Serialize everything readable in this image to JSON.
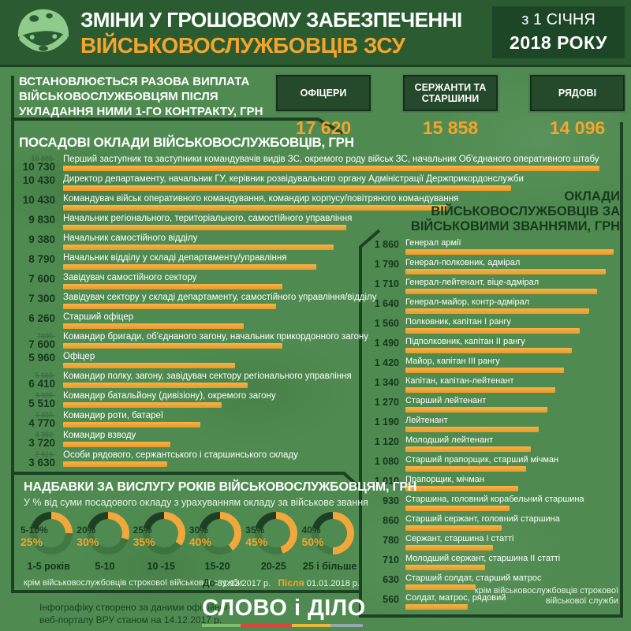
{
  "colors": {
    "background": "#4F8B50",
    "header": "#2B5C31",
    "panel_dark": "#1C4123",
    "box": "#24492B",
    "accent_orange": "#F2A73B",
    "value_dark": "#16371D"
  },
  "header": {
    "title_line1": "ЗМІНИ У ГРОШОВОМУ ЗАБЕЗПЕЧЕННІ",
    "title_line2": "ВІЙСЬКОВОСЛУЖБОВЦІВ ЗСУ",
    "date_line1": "з 1 СІЧНЯ",
    "date_line2": "2018 РОКУ"
  },
  "contract": {
    "lines": [
      "ВСТАНОВЛЮЄТЬСЯ РАЗОВА ВИПЛАТА",
      "ВІЙСЬКОВОСЛУЖБОВЦЯМ ПІСЛЯ",
      "УКЛАДАННЯ НИМИ 1-ГО КОНТРАКТУ, ГРН"
    ],
    "categories": [
      {
        "label": "ОФІЦЕРИ",
        "value": "17 620"
      },
      {
        "label": "СЕРЖАНТИ ТА СТАРШИНИ",
        "value": "15 858"
      },
      {
        "label": "РЯДОВІ",
        "value": "14 096"
      }
    ]
  },
  "chart_data": [
    {
      "type": "bar",
      "orientation": "horizontal",
      "title": "ПОСАДОВІ ОКЛАДИ ВІЙСЬКОВОСЛУЖБОВЦІВ, ГРН",
      "unit": "грн",
      "max": 10730,
      "bar_color": "#F2A73B",
      "rows": [
        {
          "label": "Перший заступник та заступники командувачів видів ЗС, окремого роду військ ЗС, начальник Об'єднаного оперативного штабу",
          "value": 10730,
          "value_label": "10 730",
          "old_label": "10 580-"
        },
        {
          "label": "Директор департаменту, начальник ГУ, керівник розвідувального органу Адміністрації Держприкордонслужби",
          "value": 10430,
          "value_label": "10 430"
        },
        {
          "label": "Командувач військ оперативного командування, командир корпусу/повітряного командування",
          "value": 10430,
          "value_label": "10 430"
        },
        {
          "label": "Начальник регіонального, територіального, самостійного управління",
          "value": 9830,
          "value_label": "9 830"
        },
        {
          "label": "Начальник самостійного відділу",
          "value": 9380,
          "value_label": "9 380"
        },
        {
          "label": "Начальник відділу у складі департаменту/управління",
          "value": 8790,
          "value_label": "8 790"
        },
        {
          "label": "Завідувач самостійного сектору",
          "value": 7600,
          "value_label": "7 600"
        },
        {
          "label": "Завідувач сектору у складі департаменту, самостійного управління/відділу",
          "value": 7300,
          "value_label": "7 300"
        },
        {
          "label": "Старший офіцер",
          "value": 6260,
          "value_label": "6 260"
        },
        {
          "label": "Командир бригади, об'єднаного загону, начальник прикордонного загону",
          "value": 7600,
          "value_label": "7 600",
          "old_label": "7000-"
        },
        {
          "label": "Офіцер",
          "value": 5960,
          "value_label": "5 960"
        },
        {
          "label": "Командир полку, загону, завідувач сектору регіонального управління",
          "value": 6410,
          "value_label": "6 410",
          "old_label": "5 660-"
        },
        {
          "label": "Командир батальйону (дивізіону), окремого загону",
          "value": 5510,
          "value_label": "5 510",
          "old_label": "4 920-"
        },
        {
          "label": "Командир роти, батареї",
          "value": 4770,
          "value_label": "4 770",
          "old_label": "4 320-"
        },
        {
          "label": "Командир взводу",
          "value": 3720,
          "value_label": "3 720",
          "old_label": "3 350-"
        },
        {
          "label": "Особи рядового, сержантського і старшинського складу",
          "value": 3630,
          "value_label": "3 630",
          "old_label": "2 610-"
        }
      ]
    },
    {
      "type": "bar",
      "orientation": "horizontal",
      "title": "ОКЛАДИ ВІЙСЬКОВОСЛУЖБОВЦІВ ЗА ВІЙСЬКОВИМИ ЗВАННЯМИ, ГРН",
      "title_lines": [
        "ОКЛАДИ",
        "ВІЙСЬКОВОСЛУЖБОВЦІВ ЗА",
        "ВІЙСЬКОВИМИ ЗВАННЯМИ, ГРН"
      ],
      "unit": "грн",
      "max": 1860,
      "bar_color": "#F2A73B",
      "note": "крім військовослужбовців строкової військової служби",
      "rows": [
        {
          "label": "Генерал армії",
          "value": 1860,
          "value_label": "1 860"
        },
        {
          "label": "Генерал-полковник, адмірал",
          "value": 1790,
          "value_label": "1 790"
        },
        {
          "label": "Генерал-лейтенант, віце-адмірал",
          "value": 1710,
          "value_label": "1 710"
        },
        {
          "label": "Генерал-майор, контр-адмірал",
          "value": 1640,
          "value_label": "1 640"
        },
        {
          "label": "Полковник, капітан I рангу",
          "value": 1560,
          "value_label": "1 560"
        },
        {
          "label": "Підполковник, капітан II рангу",
          "value": 1490,
          "value_label": "1 490"
        },
        {
          "label": "Майор, капітан III рангу",
          "value": 1420,
          "value_label": "1 420"
        },
        {
          "label": "Капітан, капітан-лейтенант",
          "value": 1340,
          "value_label": "1 340"
        },
        {
          "label": "Старший лейтенант",
          "value": 1270,
          "value_label": "1 270"
        },
        {
          "label": "Лейтенант",
          "value": 1190,
          "value_label": "1 190"
        },
        {
          "label": "Молодший лейтенант",
          "value": 1120,
          "value_label": "1 120"
        },
        {
          "label": "Старший прапорщик, старший мічман",
          "value": 1080,
          "value_label": "1 080"
        },
        {
          "label": "Прапорщик, мічман",
          "value": 1010,
          "value_label": "1 010"
        },
        {
          "label": "Старшина, головний корабельний старшина",
          "value": 930,
          "value_label": "930"
        },
        {
          "label": "Старший сержант, головний старшина",
          "value": 860,
          "value_label": "860"
        },
        {
          "label": "Сержант, старшина I статті",
          "value": 780,
          "value_label": "780"
        },
        {
          "label": "Молодший сержант, старшина II статті",
          "value": 710,
          "value_label": "710"
        },
        {
          "label": "Старший солдат, старший матрос",
          "value": 630,
          "value_label": "630"
        },
        {
          "label": "Солдат, матрос, рядовий",
          "value": 560,
          "value_label": "560"
        }
      ]
    },
    {
      "type": "donut-set",
      "title": "НАДБАВКИ ЗА ВИСЛУГУ РОКІВ ВІЙСЬКОВОСЛУЖБОВЦЯМ, ГРН",
      "subtitle": "У % від суми посадового окладу з урахуванням окладу за військове звання",
      "items": [
        {
          "period": "1-5 років",
          "before": "5-10%",
          "after": "25%",
          "after_value": 25
        },
        {
          "period": "5-10",
          "before": "20%",
          "after": "30%",
          "after_value": 30
        },
        {
          "period": "10 -15",
          "before": "25%",
          "after": "35%",
          "after_value": 35
        },
        {
          "period": "15-20",
          "before": "30%",
          "after": "40%",
          "after_value": 40
        },
        {
          "period": "20-25",
          "before": "35%",
          "after": "45%",
          "after_value": 45
        },
        {
          "period": "25 і більше",
          "before": "40%",
          "after": "50%",
          "after_value": 50
        }
      ],
      "note": "крім військовослужбовців строкової військової служби",
      "legend": {
        "before_word": "До",
        "before_date": "31.12.2017 р.",
        "after_word": "Після",
        "after_date": "01.01.2018 р."
      }
    }
  ],
  "footer": {
    "source_line1": "Інфографіку створено за даними офіційного",
    "source_line2": "веб-порталу ВРУ станом на 14.12.2017 р.",
    "logo_text": "СЛОВО і ДІЛО",
    "logo_bar_colors": [
      "#7CBF6E",
      "#D6473C",
      "#E9BA3D",
      "#93A9B0"
    ]
  }
}
